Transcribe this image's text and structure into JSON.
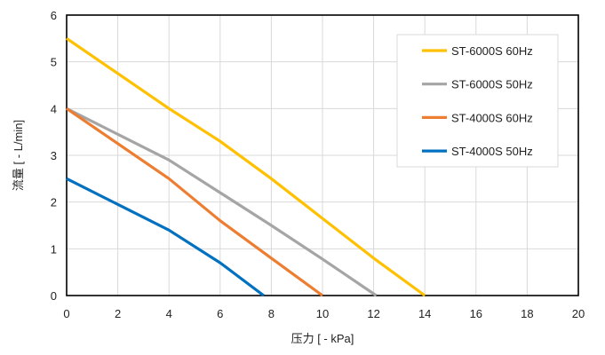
{
  "chart_data": {
    "type": "line",
    "title": "",
    "xlabel": "压力 [ - kPa]",
    "ylabel": "流量 [ - L/min]",
    "xlim": [
      0,
      20
    ],
    "ylim": [
      0,
      6
    ],
    "xticks": [
      0,
      2,
      4,
      6,
      8,
      10,
      12,
      14,
      16,
      18,
      20
    ],
    "yticks": [
      0,
      1,
      2,
      3,
      4,
      5,
      6
    ],
    "grid": true,
    "legend_position": "top-right",
    "series": [
      {
        "name": "ST-6000S 60Hz",
        "color": "#FFC000",
        "points": [
          [
            0,
            5.5
          ],
          [
            4,
            4.0
          ],
          [
            6,
            3.3
          ],
          [
            8,
            2.5
          ],
          [
            10,
            1.65
          ],
          [
            12,
            0.8
          ],
          [
            14,
            0
          ]
        ]
      },
      {
        "name": "ST-6000S 50Hz",
        "color": "#A5A5A5",
        "points": [
          [
            0,
            4.0
          ],
          [
            2,
            3.45
          ],
          [
            4,
            2.9
          ],
          [
            6,
            2.2
          ],
          [
            8,
            1.5
          ],
          [
            10,
            0.78
          ],
          [
            12.1,
            0
          ]
        ]
      },
      {
        "name": "ST-4000S 60Hz",
        "color": "#ED7D31",
        "points": [
          [
            0,
            4.0
          ],
          [
            2,
            3.25
          ],
          [
            4,
            2.5
          ],
          [
            6,
            1.6
          ],
          [
            8,
            0.8
          ],
          [
            10,
            0
          ]
        ]
      },
      {
        "name": "ST-4000S 50Hz",
        "color": "#0070C0",
        "points": [
          [
            0,
            2.5
          ],
          [
            2,
            1.95
          ],
          [
            4,
            1.4
          ],
          [
            6,
            0.7
          ],
          [
            7.7,
            0
          ]
        ]
      }
    ]
  }
}
